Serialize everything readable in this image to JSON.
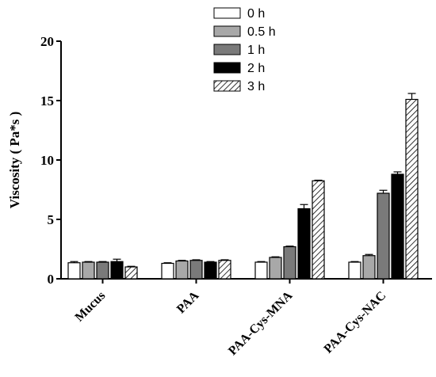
{
  "chart_data": {
    "type": "bar",
    "title": "",
    "xlabel": "",
    "ylabel": "Viscosity ( Pa*s )",
    "ylim": [
      0,
      20
    ],
    "yticks": [
      0,
      5,
      10,
      15,
      20
    ],
    "grid": false,
    "legend_position": "top-center",
    "categories": [
      "Mucus",
      "PAA",
      "PAA-Cys-MNA",
      "PAA-Cys-NAC"
    ],
    "series": [
      {
        "name": "0 h",
        "fill": "#ffffff",
        "pattern": "none",
        "values": [
          1.35,
          1.3,
          1.4,
          1.4
        ],
        "errors": [
          0.1,
          0.05,
          0.05,
          0.05
        ]
      },
      {
        "name": "0.5 h",
        "fill": "#a8a8a8",
        "pattern": "none",
        "values": [
          1.4,
          1.5,
          1.8,
          1.95
        ],
        "errors": [
          0.05,
          0.05,
          0.05,
          0.1
        ]
      },
      {
        "name": "1 h",
        "fill": "#7a7a7a",
        "pattern": "none",
        "values": [
          1.4,
          1.55,
          2.7,
          7.2
        ],
        "errors": [
          0.05,
          0.05,
          0.05,
          0.25
        ]
      },
      {
        "name": "2 h",
        "fill": "#000000",
        "pattern": "none",
        "values": [
          1.45,
          1.4,
          5.9,
          8.8
        ],
        "errors": [
          0.2,
          0.05,
          0.35,
          0.2
        ]
      },
      {
        "name": "3 h",
        "fill": "#ffffff",
        "pattern": "hatch",
        "values": [
          1.0,
          1.55,
          8.25,
          15.1
        ],
        "errors": [
          0.05,
          0.05,
          0.05,
          0.5
        ]
      }
    ]
  }
}
